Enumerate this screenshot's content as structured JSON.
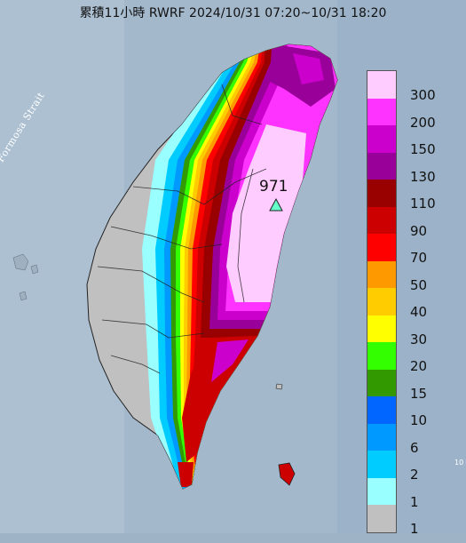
{
  "title": "累積11小時 RWRF 2024/10/31 07:20~10/31 18:20",
  "strait_label": "Formosa Strait",
  "max_value_label": "971",
  "small_mark": "10",
  "legend": [
    {
      "label": "300",
      "color": "#ffccff"
    },
    {
      "label": "200",
      "color": "#ff33ff"
    },
    {
      "label": "150",
      "color": "#cc00cc"
    },
    {
      "label": "130",
      "color": "#990099"
    },
    {
      "label": "110",
      "color": "#990000"
    },
    {
      "label": "90",
      "color": "#cc0000"
    },
    {
      "label": "70",
      "color": "#ff0000"
    },
    {
      "label": "50",
      "color": "#ff9900"
    },
    {
      "label": "40",
      "color": "#ffcc00"
    },
    {
      "label": "30",
      "color": "#ffff00"
    },
    {
      "label": "20",
      "color": "#33ff00"
    },
    {
      "label": "15",
      "color": "#339900"
    },
    {
      "label": "10",
      "color": "#0066ff"
    },
    {
      "label": "6",
      "color": "#0099ff"
    },
    {
      "label": "2",
      "color": "#00ccff"
    },
    {
      "label": "1",
      "color": "#99ffff"
    },
    {
      "label": "",
      "color": "#c0c0c0"
    }
  ]
}
